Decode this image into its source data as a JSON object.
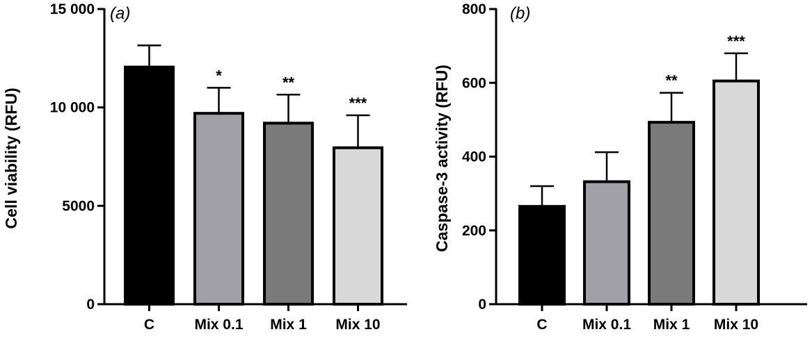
{
  "chart_data": [
    {
      "type": "bar",
      "panel": "(a)",
      "title": "",
      "xlabel": "",
      "ylabel": "Cell viability (RFU)",
      "categories": [
        "C",
        "Mix 0.1",
        "Mix 1",
        "Mix 10"
      ],
      "values": [
        12050,
        9700,
        9200,
        7950
      ],
      "errors": [
        1100,
        1300,
        1450,
        1650
      ],
      "significance": [
        "",
        "*",
        "**",
        "***"
      ],
      "ylim": [
        0,
        15000
      ],
      "yticks": [
        0,
        5000,
        10000,
        15000
      ],
      "ytick_labels": [
        "0",
        "5000",
        "10 000",
        "15 000"
      ],
      "colors": [
        "#000000",
        "#a0a0a6",
        "#7a7a7a",
        "#d8d8d8"
      ]
    },
    {
      "type": "bar",
      "panel": "(b)",
      "title": "",
      "xlabel": "",
      "ylabel": "Caspase-3 activity (RFU)",
      "categories": [
        "C",
        "Mix 0.1",
        "Mix 1",
        "Mix 10"
      ],
      "values": [
        265,
        332,
        493,
        605
      ],
      "errors": [
        55,
        80,
        80,
        75
      ],
      "significance": [
        "",
        "",
        "**",
        "***"
      ],
      "ylim": [
        0,
        800
      ],
      "yticks": [
        0,
        200,
        400,
        600,
        800
      ],
      "ytick_labels": [
        "0",
        "200",
        "400",
        "600",
        "800"
      ],
      "colors": [
        "#000000",
        "#a0a0a6",
        "#7a7a7a",
        "#d8d8d8"
      ]
    }
  ]
}
